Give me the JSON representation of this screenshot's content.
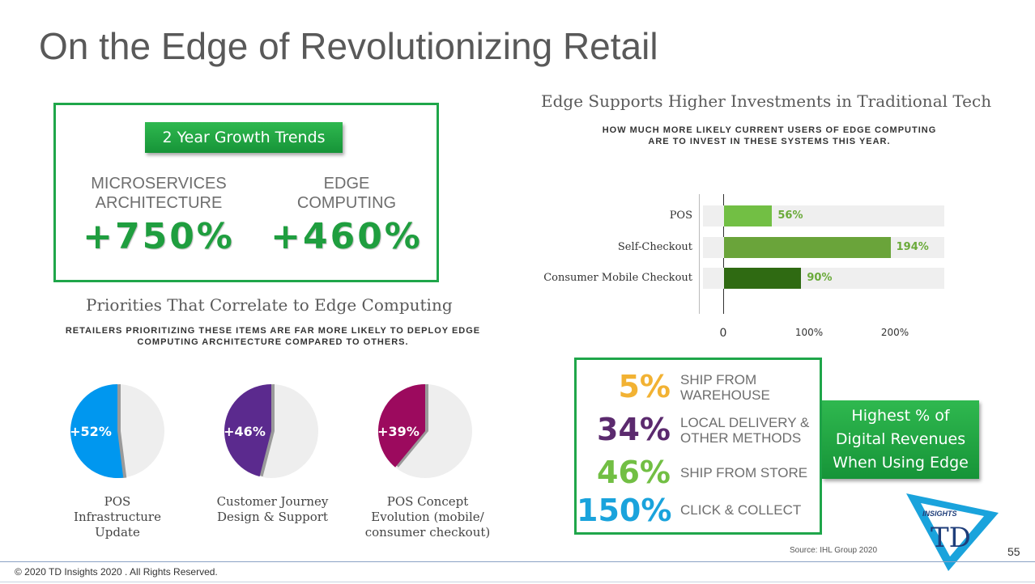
{
  "title": "On the Edge of Revolutionizing Retail",
  "growth": {
    "pill": "2 Year Growth Trends",
    "metrics": [
      {
        "label_line1": "MICROSERVICES",
        "label_line2": "ARCHITECTURE",
        "value": "+750%"
      },
      {
        "label_line1": "EDGE",
        "label_line2": "COMPUTING",
        "value": "+460%"
      }
    ]
  },
  "priorities": {
    "title": "Priorities That Correlate to Edge Computing",
    "subtitle_line1": "RETAILERS PRIORITIZING THESE ITEMS ARE FAR MORE LIKELY TO DEPLOY EDGE",
    "subtitle_line2": "COMPUTING ARCHITECTURE COMPARED TO OTHERS.",
    "pies": [
      {
        "label": "+52%",
        "value": 52,
        "color": "#0097ef",
        "caption": [
          "POS",
          "Infrastructure",
          "Update"
        ]
      },
      {
        "label": "+46%",
        "value": 46,
        "color": "#5b2a8e",
        "caption": [
          "Customer Journey",
          "Design & Support"
        ]
      },
      {
        "label": "+39%",
        "value": 39,
        "color": "#9c0a5e",
        "caption": [
          "POS Concept",
          "Evolution (mobile/",
          "consumer checkout)"
        ]
      }
    ]
  },
  "investments": {
    "title": "Edge Supports Higher Investments in Traditional Tech",
    "subtitle_line1": "HOW MUCH MORE LIKELY CURRENT USERS OF EDGE COMPUTING",
    "subtitle_line2": "ARE TO INVEST IN THESE SYSTEMS THIS YEAR."
  },
  "chart_data": [
    {
      "type": "bar",
      "orientation": "horizontal",
      "title": "Edge Supports Higher Investments in Traditional Tech",
      "subtitle": "HOW MUCH MORE LIKELY CURRENT USERS OF EDGE COMPUTING ARE TO INVEST IN THESE SYSTEMS THIS YEAR.",
      "categories": [
        "POS",
        "Self-Checkout",
        "Consumer Mobile Checkout"
      ],
      "values": [
        56,
        194,
        90
      ],
      "value_labels": [
        "56%",
        "194%",
        "90%"
      ],
      "bar_colors": [
        "#72bf44",
        "#6aa43a",
        "#2f6a12"
      ],
      "xlim": [
        0,
        300
      ],
      "ticks": [
        "0",
        "100%",
        "200%"
      ],
      "tick_values": [
        0,
        100,
        200
      ]
    },
    {
      "type": "pie",
      "title": "Priorities That Correlate to Edge Computing",
      "slices": [
        {
          "name": "POS Infrastructure Update",
          "value": 52
        },
        {
          "name": "Customer Journey Design & Support",
          "value": 46
        },
        {
          "name": "POS Concept Evolution (mobile/ consumer checkout)",
          "value": 39
        }
      ]
    }
  ],
  "revenues": {
    "pill": [
      "Highest % of",
      "Digital Revenues",
      "When Using Edge"
    ],
    "items": [
      {
        "pct": "5%",
        "color": "#f2b233",
        "label_line1": "SHIP FROM",
        "label_line2": "WAREHOUSE"
      },
      {
        "pct": "34%",
        "color": "#5b2a6e",
        "label_line1": "LOCAL DELIVERY &",
        "label_line2": "OTHER METHODS"
      },
      {
        "pct": "46%",
        "color": "#72bf44",
        "label_line1": "SHIP FROM STORE",
        "label_line2": ""
      },
      {
        "pct": "150%",
        "color": "#1aa3dc",
        "label_line1": "CLICK & COLLECT",
        "label_line2": ""
      }
    ]
  },
  "logo": {
    "text_top": "INSIGHTS",
    "text_main": "TD"
  },
  "source": "Source: IHL Group 2020",
  "page_number": "55",
  "copyright": "© 2020 TD Insights 2020 . All Rights Reserved."
}
